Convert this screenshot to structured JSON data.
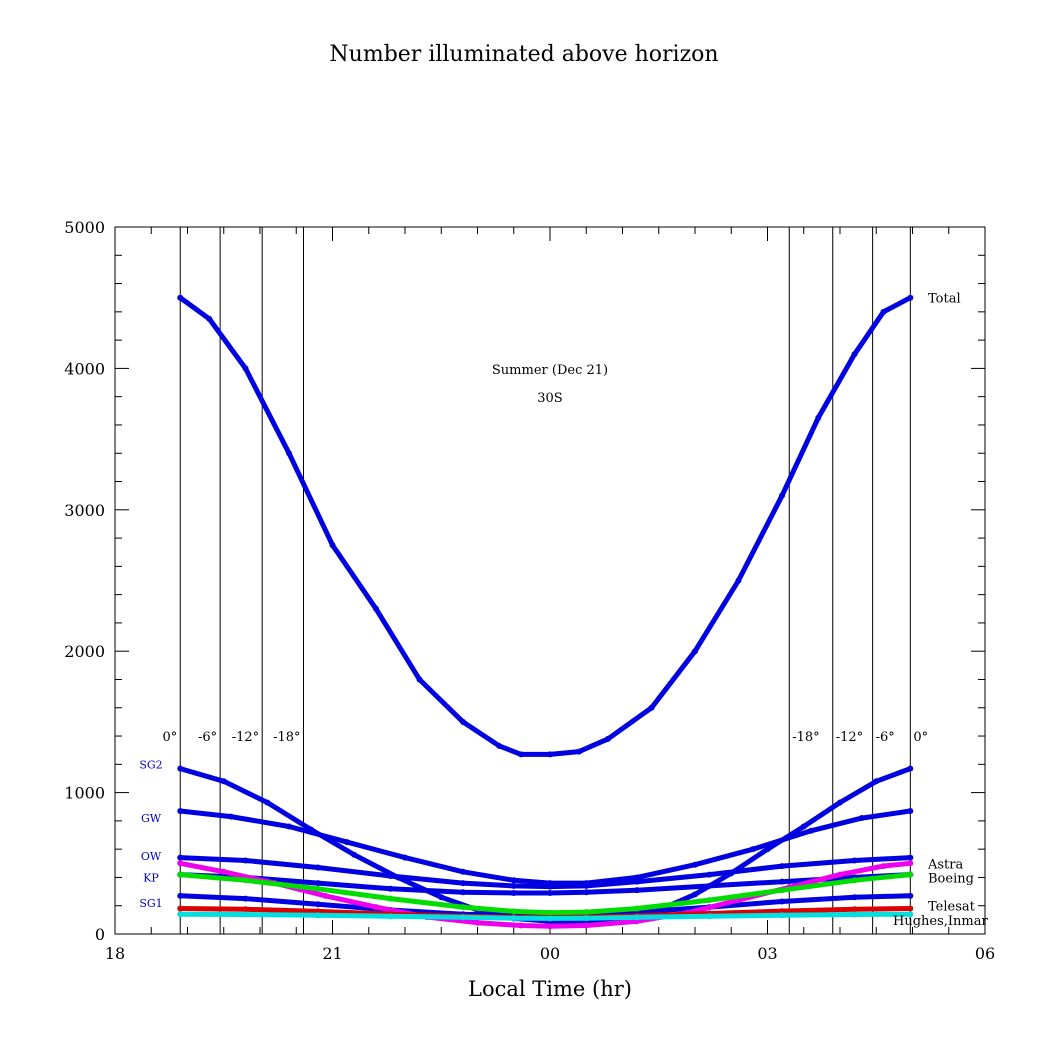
{
  "chart_data": {
    "type": "line",
    "title": "Number illuminated above horizon",
    "xlabel": "Local Time (hr)",
    "ylabel": "",
    "annotation_season": "Summer (Dec 21)",
    "annotation_latitude": "30S",
    "xlim": [
      18,
      30
    ],
    "ylim": [
      0,
      5000
    ],
    "x_ticks": [
      {
        "value": 18,
        "label": "18"
      },
      {
        "value": 21,
        "label": "21"
      },
      {
        "value": 24,
        "label": "00"
      },
      {
        "value": 27,
        "label": "03"
      },
      {
        "value": 30,
        "label": "06"
      }
    ],
    "y_ticks": [
      {
        "value": 0,
        "label": "0"
      },
      {
        "value": 1000,
        "label": "1000"
      },
      {
        "value": 2000,
        "label": "2000"
      },
      {
        "value": 3000,
        "label": "3000"
      },
      {
        "value": 4000,
        "label": "4000"
      },
      {
        "value": 5000,
        "label": "5000"
      }
    ],
    "twilight_lines": [
      {
        "x": 18.9,
        "label": "0°"
      },
      {
        "x": 19.45,
        "label": "-6°"
      },
      {
        "x": 20.03,
        "label": "-12°"
      },
      {
        "x": 20.6,
        "label": "-18°"
      },
      {
        "x": 27.3,
        "label": "-18°"
      },
      {
        "x": 27.9,
        "label": "-12°"
      },
      {
        "x": 28.45,
        "label": "-6°"
      },
      {
        "x": 28.97,
        "label": "0°"
      }
    ],
    "series": [
      {
        "name": "Total",
        "color": "#0000e0",
        "x": [
          18.9,
          19.3,
          19.8,
          20.4,
          21.0,
          21.6,
          22.2,
          22.8,
          23.3,
          23.6,
          24.0,
          24.4,
          24.8,
          25.4,
          26.0,
          26.6,
          27.2,
          27.7,
          28.2,
          28.6,
          28.97
        ],
        "y": [
          4500,
          4350,
          4000,
          3400,
          2750,
          2300,
          1800,
          1500,
          1330,
          1270,
          1270,
          1290,
          1380,
          1600,
          2000,
          2500,
          3100,
          3650,
          4100,
          4400,
          4500
        ]
      },
      {
        "name": "SG2",
        "color": "#0000e0",
        "x": [
          18.9,
          19.5,
          20.1,
          20.7,
          21.3,
          21.9,
          22.5,
          23.0,
          23.5,
          24.0,
          24.5,
          25.0,
          25.5,
          26.0,
          26.5,
          27.0,
          27.5,
          28.0,
          28.5,
          28.97
        ],
        "y": [
          1170,
          1080,
          930,
          740,
          560,
          400,
          260,
          170,
          110,
          90,
          90,
          110,
          170,
          280,
          430,
          600,
          760,
          930,
          1080,
          1170
        ]
      },
      {
        "name": "GW",
        "color": "#0000e0",
        "x": [
          18.9,
          19.6,
          20.4,
          21.2,
          22.0,
          22.8,
          23.5,
          24.0,
          24.5,
          25.2,
          26.0,
          26.8,
          27.6,
          28.3,
          28.97
        ],
        "y": [
          870,
          830,
          760,
          650,
          540,
          440,
          380,
          360,
          360,
          400,
          490,
          600,
          730,
          820,
          870
        ]
      },
      {
        "name": "OW",
        "color": "#0000e0",
        "x": [
          18.9,
          19.8,
          20.8,
          21.8,
          22.8,
          23.5,
          24.0,
          24.5,
          25.2,
          26.2,
          27.2,
          28.2,
          28.97
        ],
        "y": [
          540,
          520,
          470,
          410,
          360,
          340,
          335,
          340,
          370,
          420,
          480,
          520,
          540
        ]
      },
      {
        "name": "KP",
        "color": "#0000e0",
        "x": [
          18.9,
          19.8,
          20.8,
          21.8,
          22.8,
          23.5,
          24.0,
          24.5,
          25.2,
          26.2,
          27.2,
          28.2,
          28.97
        ],
        "y": [
          420,
          400,
          360,
          320,
          295,
          290,
          290,
          295,
          310,
          340,
          370,
          400,
          420
        ]
      },
      {
        "name": "SG1",
        "color": "#0000e0",
        "x": [
          18.9,
          19.8,
          20.8,
          21.8,
          22.8,
          23.5,
          24.0,
          24.5,
          25.2,
          26.2,
          27.2,
          28.2,
          28.97
        ],
        "y": [
          270,
          250,
          210,
          170,
          140,
          130,
          130,
          135,
          155,
          190,
          230,
          260,
          270
        ]
      },
      {
        "name": "Astra",
        "color": "#ee00ee",
        "x": [
          18.9,
          19.5,
          20.2,
          20.9,
          21.6,
          22.3,
          23.0,
          23.6,
          24.0,
          24.5,
          25.2,
          25.9,
          26.6,
          27.3,
          28.0,
          28.6,
          28.97
        ],
        "y": [
          500,
          440,
          360,
          270,
          190,
          120,
          80,
          60,
          55,
          60,
          90,
          150,
          240,
          330,
          420,
          480,
          500
        ]
      },
      {
        "name": "Boeing",
        "color": "#00dd00",
        "x": [
          18.9,
          19.8,
          20.8,
          21.8,
          22.8,
          23.5,
          24.0,
          24.5,
          25.2,
          26.2,
          27.2,
          28.2,
          28.97
        ],
        "y": [
          420,
          380,
          320,
          250,
          190,
          160,
          150,
          155,
          180,
          240,
          310,
          380,
          420
        ]
      },
      {
        "name": "Telesat",
        "color": "#dd0000",
        "x": [
          18.9,
          19.8,
          20.8,
          21.8,
          22.8,
          23.5,
          24.0,
          24.5,
          25.2,
          26.2,
          27.2,
          28.2,
          28.97
        ],
        "y": [
          180,
          175,
          160,
          140,
          125,
          118,
          115,
          118,
          128,
          145,
          162,
          175,
          180
        ]
      },
      {
        "name": "Hughes,Inmar",
        "color": "#00e0e0",
        "x": [
          18.9,
          19.8,
          20.8,
          21.8,
          22.8,
          23.5,
          24.0,
          24.5,
          25.2,
          26.2,
          27.2,
          28.2,
          28.97
        ],
        "y": [
          140,
          138,
          132,
          125,
          118,
          112,
          110,
          112,
          118,
          126,
          133,
          138,
          140
        ]
      }
    ],
    "left_labels": [
      {
        "name": "SG2",
        "y": 1200
      },
      {
        "name": "GW",
        "y": 820
      },
      {
        "name": "OW",
        "y": 550
      },
      {
        "name": "KP",
        "y": 400
      },
      {
        "name": "SG1",
        "y": 220
      }
    ],
    "right_labels": [
      {
        "name": "Total",
        "y": 4500,
        "color": "#000000"
      },
      {
        "name": "Astra",
        "y": 500,
        "color": "#ee00ee"
      },
      {
        "name": "Boeing",
        "y": 400,
        "color": "#00dd00"
      },
      {
        "name": "Telesat",
        "y": 200,
        "color": "#dd0000"
      },
      {
        "name": "Hughes,Inmar",
        "y": 100,
        "color": "#00e0e0"
      }
    ]
  }
}
